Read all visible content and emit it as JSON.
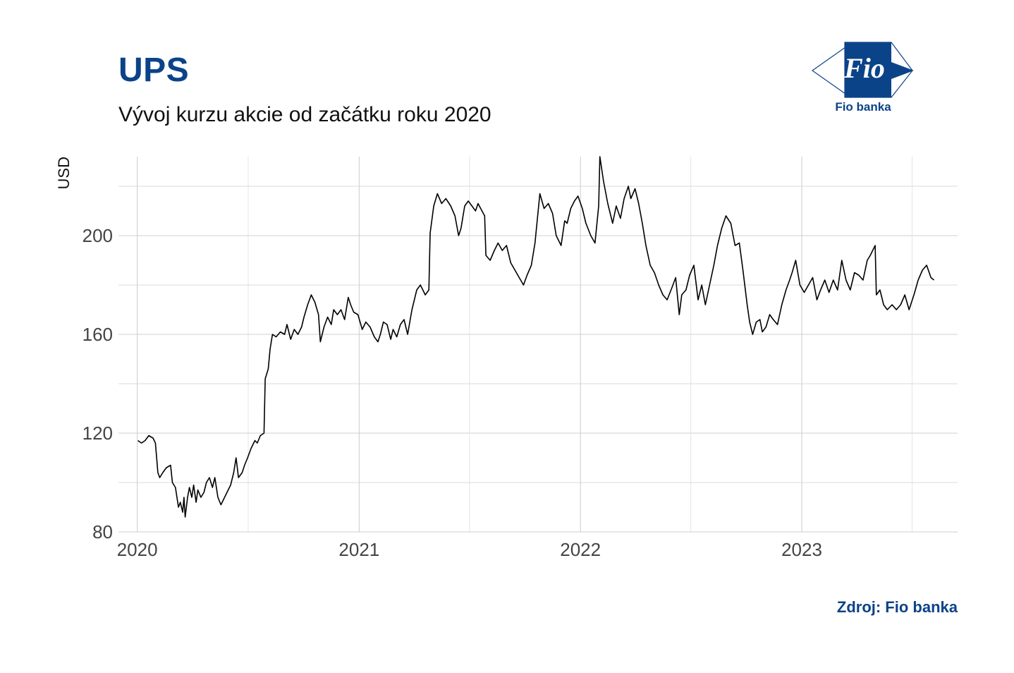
{
  "header": {
    "title": "UPS",
    "subtitle": "Vývoj kurzu akcie od začátku roku 2020"
  },
  "logo": {
    "mark_text": "Fio",
    "caption": "Fio banka",
    "color": "#0b4388"
  },
  "footer": {
    "source": "Zdroj: Fio banka"
  },
  "chart_data": {
    "type": "line",
    "title": "UPS",
    "subtitle": "Vývoj kurzu akcie od začátku roku 2020",
    "ylabel": "USD",
    "xlabel": "",
    "x_ticks": [
      "2020",
      "2021",
      "2022",
      "2023"
    ],
    "y_ticks": [
      80,
      120,
      160,
      200
    ],
    "xlim": [
      "2019-12-01",
      "2023-09-15"
    ],
    "ylim": [
      80,
      232
    ],
    "grid": true,
    "line_color": "#000000",
    "series": [
      {
        "name": "",
        "points": [
          [
            "2020-01-02",
            117
          ],
          [
            "2020-01-08",
            116
          ],
          [
            "2020-01-14",
            117
          ],
          [
            "2020-01-20",
            119
          ],
          [
            "2020-01-27",
            118
          ],
          [
            "2020-01-31",
            116
          ],
          [
            "2020-02-04",
            104
          ],
          [
            "2020-02-07",
            102
          ],
          [
            "2020-02-12",
            104
          ],
          [
            "2020-02-18",
            106
          ],
          [
            "2020-02-25",
            107
          ],
          [
            "2020-02-28",
            100
          ],
          [
            "2020-03-04",
            98
          ],
          [
            "2020-03-09",
            90
          ],
          [
            "2020-03-12",
            92
          ],
          [
            "2020-03-16",
            88
          ],
          [
            "2020-03-18",
            94
          ],
          [
            "2020-03-20",
            86
          ],
          [
            "2020-03-24",
            94
          ],
          [
            "2020-03-27",
            98
          ],
          [
            "2020-03-31",
            94
          ],
          [
            "2020-04-03",
            99
          ],
          [
            "2020-04-07",
            92
          ],
          [
            "2020-04-10",
            97
          ],
          [
            "2020-04-15",
            94
          ],
          [
            "2020-04-20",
            96
          ],
          [
            "2020-04-24",
            100
          ],
          [
            "2020-04-29",
            102
          ],
          [
            "2020-05-04",
            98
          ],
          [
            "2020-05-08",
            102
          ],
          [
            "2020-05-13",
            94
          ],
          [
            "2020-05-18",
            91
          ],
          [
            "2020-05-22",
            93
          ],
          [
            "2020-05-28",
            96
          ],
          [
            "2020-06-03",
            99
          ],
          [
            "2020-06-08",
            104
          ],
          [
            "2020-06-12",
            110
          ],
          [
            "2020-06-16",
            102
          ],
          [
            "2020-06-22",
            104
          ],
          [
            "2020-06-26",
            107
          ],
          [
            "2020-07-01",
            110
          ],
          [
            "2020-07-07",
            114
          ],
          [
            "2020-07-13",
            117
          ],
          [
            "2020-07-17",
            116
          ],
          [
            "2020-07-22",
            119
          ],
          [
            "2020-07-28",
            120
          ],
          [
            "2020-07-30",
            142
          ],
          [
            "2020-08-04",
            146
          ],
          [
            "2020-08-07",
            154
          ],
          [
            "2020-08-11",
            160
          ],
          [
            "2020-08-17",
            159
          ],
          [
            "2020-08-24",
            161
          ],
          [
            "2020-08-31",
            160
          ],
          [
            "2020-09-04",
            164
          ],
          [
            "2020-09-10",
            158
          ],
          [
            "2020-09-16",
            162
          ],
          [
            "2020-09-22",
            160
          ],
          [
            "2020-09-28",
            163
          ],
          [
            "2020-10-02",
            167
          ],
          [
            "2020-10-08",
            172
          ],
          [
            "2020-10-14",
            176
          ],
          [
            "2020-10-20",
            173
          ],
          [
            "2020-10-26",
            168
          ],
          [
            "2020-10-29",
            157
          ],
          [
            "2020-11-04",
            163
          ],
          [
            "2020-11-10",
            167
          ],
          [
            "2020-11-16",
            164
          ],
          [
            "2020-11-20",
            170
          ],
          [
            "2020-11-26",
            168
          ],
          [
            "2020-12-02",
            170
          ],
          [
            "2020-12-08",
            166
          ],
          [
            "2020-12-14",
            175
          ],
          [
            "2020-12-18",
            172
          ],
          [
            "2020-12-23",
            169
          ],
          [
            "2020-12-30",
            168
          ],
          [
            "2021-01-06",
            162
          ],
          [
            "2021-01-12",
            165
          ],
          [
            "2021-01-19",
            163
          ],
          [
            "2021-01-26",
            159
          ],
          [
            "2021-02-01",
            157
          ],
          [
            "2021-02-05",
            160
          ],
          [
            "2021-02-10",
            165
          ],
          [
            "2021-02-16",
            164
          ],
          [
            "2021-02-22",
            158
          ],
          [
            "2021-02-26",
            162
          ],
          [
            "2021-03-04",
            159
          ],
          [
            "2021-03-10",
            164
          ],
          [
            "2021-03-16",
            166
          ],
          [
            "2021-03-22",
            160
          ],
          [
            "2021-03-29",
            170
          ],
          [
            "2021-04-06",
            178
          ],
          [
            "2021-04-12",
            180
          ],
          [
            "2021-04-20",
            176
          ],
          [
            "2021-04-26",
            178
          ],
          [
            "2021-04-28",
            201
          ],
          [
            "2021-05-04",
            212
          ],
          [
            "2021-05-10",
            217
          ],
          [
            "2021-05-17",
            213
          ],
          [
            "2021-05-24",
            215
          ],
          [
            "2021-06-01",
            212
          ],
          [
            "2021-06-08",
            208
          ],
          [
            "2021-06-14",
            200
          ],
          [
            "2021-06-18",
            203
          ],
          [
            "2021-06-24",
            212
          ],
          [
            "2021-06-30",
            214
          ],
          [
            "2021-07-06",
            212
          ],
          [
            "2021-07-12",
            210
          ],
          [
            "2021-07-16",
            213
          ],
          [
            "2021-07-27",
            208
          ],
          [
            "2021-07-29",
            192
          ],
          [
            "2021-08-05",
            190
          ],
          [
            "2021-08-12",
            194
          ],
          [
            "2021-08-18",
            197
          ],
          [
            "2021-08-25",
            194
          ],
          [
            "2021-09-01",
            196
          ],
          [
            "2021-09-08",
            189
          ],
          [
            "2021-09-15",
            186
          ],
          [
            "2021-09-22",
            183
          ],
          [
            "2021-09-29",
            180
          ],
          [
            "2021-10-05",
            184
          ],
          [
            "2021-10-12",
            188
          ],
          [
            "2021-10-18",
            197
          ],
          [
            "2021-10-26",
            217
          ],
          [
            "2021-11-02",
            211
          ],
          [
            "2021-11-09",
            213
          ],
          [
            "2021-11-16",
            209
          ],
          [
            "2021-11-22",
            200
          ],
          [
            "2021-11-30",
            196
          ],
          [
            "2021-12-06",
            206
          ],
          [
            "2021-12-10",
            205
          ],
          [
            "2021-12-16",
            211
          ],
          [
            "2021-12-22",
            214
          ],
          [
            "2021-12-28",
            216
          ],
          [
            "2022-01-04",
            211
          ],
          [
            "2022-01-10",
            205
          ],
          [
            "2022-01-18",
            200
          ],
          [
            "2022-01-25",
            197
          ],
          [
            "2022-01-31",
            212
          ],
          [
            "2022-02-02",
            232
          ],
          [
            "2022-02-08",
            222
          ],
          [
            "2022-02-15",
            213
          ],
          [
            "2022-02-23",
            205
          ],
          [
            "2022-03-01",
            212
          ],
          [
            "2022-03-08",
            207
          ],
          [
            "2022-03-14",
            215
          ],
          [
            "2022-03-21",
            220
          ],
          [
            "2022-03-25",
            215
          ],
          [
            "2022-04-01",
            219
          ],
          [
            "2022-04-07",
            213
          ],
          [
            "2022-04-13",
            205
          ],
          [
            "2022-04-19",
            196
          ],
          [
            "2022-04-26",
            188
          ],
          [
            "2022-05-03",
            185
          ],
          [
            "2022-05-10",
            180
          ],
          [
            "2022-05-17",
            176
          ],
          [
            "2022-05-24",
            174
          ],
          [
            "2022-06-01",
            179
          ],
          [
            "2022-06-07",
            183
          ],
          [
            "2022-06-13",
            168
          ],
          [
            "2022-06-17",
            176
          ],
          [
            "2022-06-24",
            178
          ],
          [
            "2022-06-30",
            184
          ],
          [
            "2022-07-07",
            188
          ],
          [
            "2022-07-14",
            174
          ],
          [
            "2022-07-20",
            180
          ],
          [
            "2022-07-26",
            172
          ],
          [
            "2022-08-02",
            180
          ],
          [
            "2022-08-09",
            188
          ],
          [
            "2022-08-15",
            196
          ],
          [
            "2022-08-22",
            203
          ],
          [
            "2022-08-29",
            208
          ],
          [
            "2022-09-06",
            205
          ],
          [
            "2022-09-13",
            196
          ],
          [
            "2022-09-20",
            197
          ],
          [
            "2022-09-26",
            186
          ],
          [
            "2022-10-03",
            172
          ],
          [
            "2022-10-07",
            165
          ],
          [
            "2022-10-12",
            160
          ],
          [
            "2022-10-18",
            165
          ],
          [
            "2022-10-24",
            166
          ],
          [
            "2022-10-28",
            161
          ],
          [
            "2022-11-03",
            163
          ],
          [
            "2022-11-09",
            168
          ],
          [
            "2022-11-15",
            166
          ],
          [
            "2022-11-22",
            164
          ],
          [
            "2022-11-29",
            172
          ],
          [
            "2022-12-06",
            178
          ],
          [
            "2022-12-12",
            182
          ],
          [
            "2022-12-16",
            185
          ],
          [
            "2022-12-22",
            190
          ],
          [
            "2022-12-29",
            180
          ],
          [
            "2023-01-05",
            177
          ],
          [
            "2023-01-12",
            180
          ],
          [
            "2023-01-19",
            183
          ],
          [
            "2023-01-26",
            174
          ],
          [
            "2023-02-01",
            178
          ],
          [
            "2023-02-08",
            182
          ],
          [
            "2023-02-15",
            177
          ],
          [
            "2023-02-22",
            182
          ],
          [
            "2023-03-01",
            178
          ],
          [
            "2023-03-08",
            190
          ],
          [
            "2023-03-15",
            182
          ],
          [
            "2023-03-22",
            178
          ],
          [
            "2023-03-29",
            185
          ],
          [
            "2023-04-05",
            184
          ],
          [
            "2023-04-12",
            182
          ],
          [
            "2023-04-19",
            190
          ],
          [
            "2023-04-24",
            192
          ],
          [
            "2023-04-28",
            194
          ],
          [
            "2023-05-02",
            196
          ],
          [
            "2023-05-04",
            176
          ],
          [
            "2023-05-10",
            178
          ],
          [
            "2023-05-16",
            172
          ],
          [
            "2023-05-22",
            170
          ],
          [
            "2023-05-30",
            172
          ],
          [
            "2023-06-06",
            170
          ],
          [
            "2023-06-13",
            172
          ],
          [
            "2023-06-20",
            176
          ],
          [
            "2023-06-27",
            170
          ],
          [
            "2023-07-05",
            176
          ],
          [
            "2023-07-12",
            182
          ],
          [
            "2023-07-19",
            186
          ],
          [
            "2023-07-26",
            188
          ],
          [
            "2023-08-02",
            183
          ],
          [
            "2023-08-07",
            182
          ]
        ]
      }
    ]
  }
}
